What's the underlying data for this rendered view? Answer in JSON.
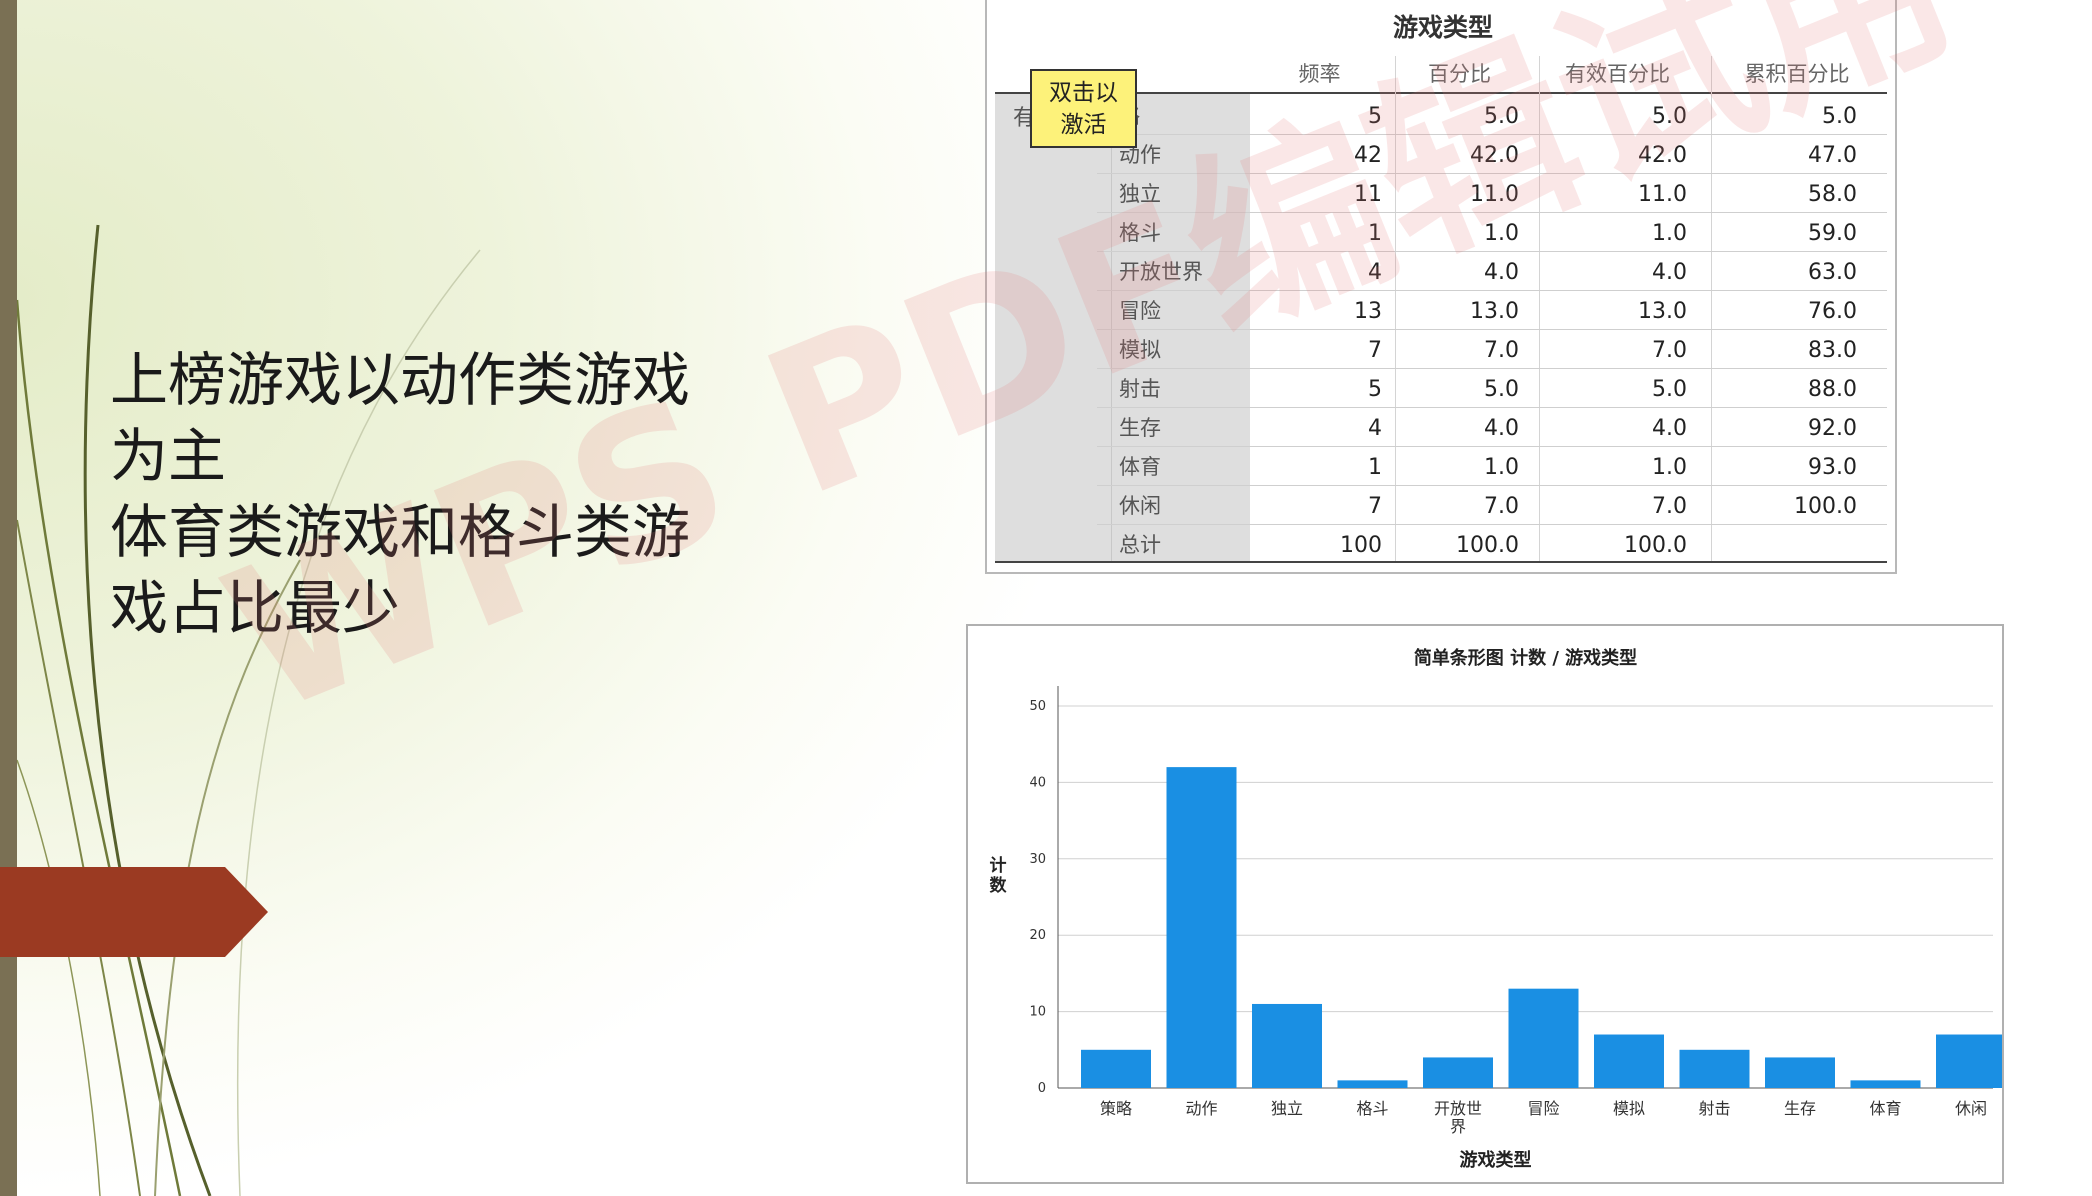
{
  "slide": {
    "text_lines": [
      "上榜游戏以动作类游戏",
      "为主",
      "体育类游戏和格斗类游",
      "戏占比最少"
    ]
  },
  "table": {
    "title": "游戏类型",
    "headers": [
      "频率",
      "百分比",
      "有效百分比",
      "累积百分比"
    ],
    "valid_label": "有",
    "tooltip": [
      "双击以",
      "激活"
    ],
    "rows": [
      {
        "label": "略",
        "freq": "5",
        "pct": "5.0",
        "valid_pct": "5.0",
        "cum_pct": "5.0"
      },
      {
        "label": "动作",
        "freq": "42",
        "pct": "42.0",
        "valid_pct": "42.0",
        "cum_pct": "47.0"
      },
      {
        "label": "独立",
        "freq": "11",
        "pct": "11.0",
        "valid_pct": "11.0",
        "cum_pct": "58.0"
      },
      {
        "label": "格斗",
        "freq": "1",
        "pct": "1.0",
        "valid_pct": "1.0",
        "cum_pct": "59.0"
      },
      {
        "label": "开放世界",
        "freq": "4",
        "pct": "4.0",
        "valid_pct": "4.0",
        "cum_pct": "63.0"
      },
      {
        "label": "冒险",
        "freq": "13",
        "pct": "13.0",
        "valid_pct": "13.0",
        "cum_pct": "76.0"
      },
      {
        "label": "模拟",
        "freq": "7",
        "pct": "7.0",
        "valid_pct": "7.0",
        "cum_pct": "83.0"
      },
      {
        "label": "射击",
        "freq": "5",
        "pct": "5.0",
        "valid_pct": "5.0",
        "cum_pct": "88.0"
      },
      {
        "label": "生存",
        "freq": "4",
        "pct": "4.0",
        "valid_pct": "4.0",
        "cum_pct": "92.0"
      },
      {
        "label": "体育",
        "freq": "1",
        "pct": "1.0",
        "valid_pct": "1.0",
        "cum_pct": "93.0"
      },
      {
        "label": "休闲",
        "freq": "7",
        "pct": "7.0",
        "valid_pct": "7.0",
        "cum_pct": "100.0"
      },
      {
        "label": "总计",
        "freq": "100",
        "pct": "100.0",
        "valid_pct": "100.0",
        "cum_pct": ""
      }
    ]
  },
  "watermark": "WPS PDF编辑试用",
  "colors": {
    "bar": "#1a8fe3",
    "accent_arrow": "#9b3a22",
    "left_bar": "#7a7054"
  },
  "chart_data": {
    "type": "bar",
    "title": "简单条形图 计数 / 游戏类型",
    "xlabel": "游戏类型",
    "ylabel": "计数",
    "categories": [
      "策略",
      "动作",
      "独立",
      "格斗",
      "开放世界",
      "冒险",
      "模拟",
      "射击",
      "生存",
      "体育",
      "休闲"
    ],
    "category_labels": [
      [
        "策略"
      ],
      [
        "动作"
      ],
      [
        "独立"
      ],
      [
        "格斗"
      ],
      [
        "开放世",
        "界"
      ],
      [
        "冒险"
      ],
      [
        "模拟"
      ],
      [
        "射击"
      ],
      [
        "生存"
      ],
      [
        "体育"
      ],
      [
        "休闲"
      ]
    ],
    "values": [
      5,
      42,
      11,
      1,
      4,
      13,
      7,
      5,
      4,
      1,
      7
    ],
    "ylim": [
      0,
      50
    ],
    "yticks": [
      0,
      10,
      20,
      30,
      40,
      50
    ],
    "grid": true
  }
}
